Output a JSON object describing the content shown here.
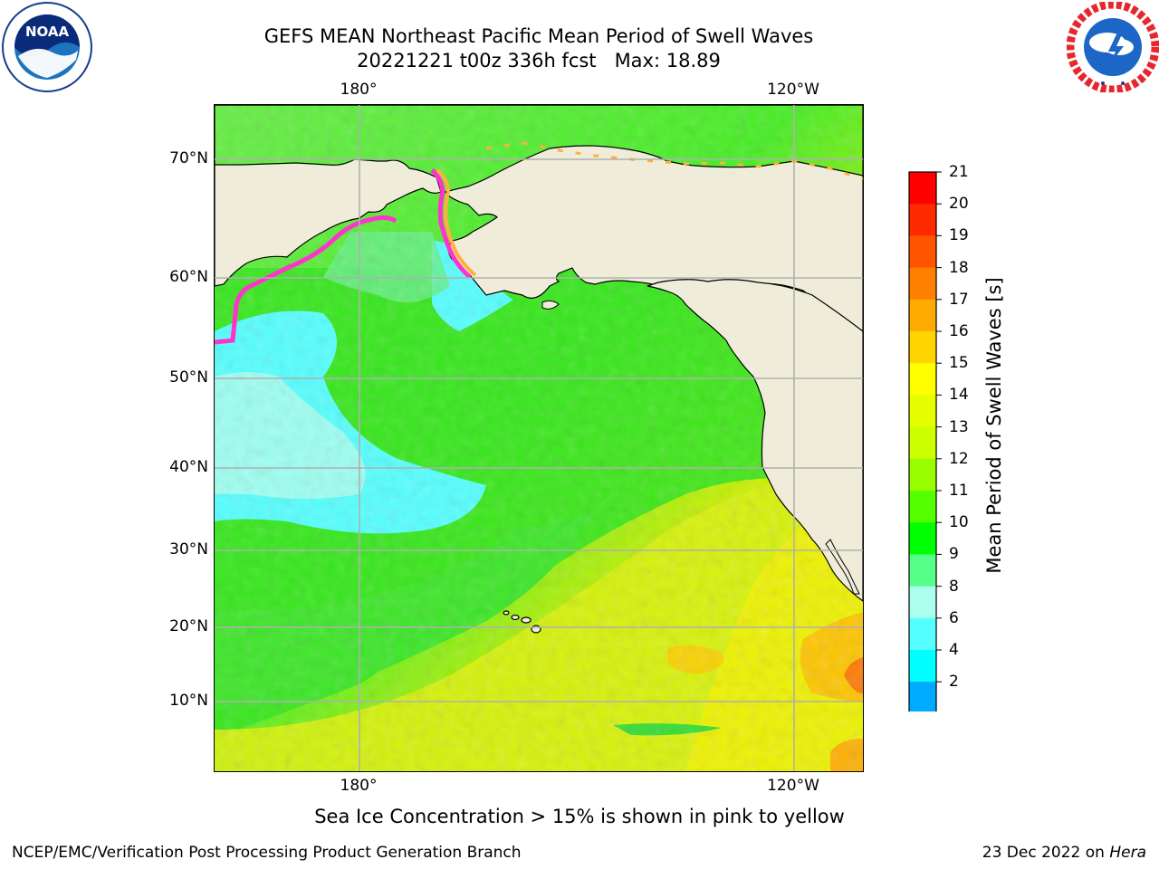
{
  "header": {
    "title_line1": "GEFS MEAN Northeast Pacific Mean Period of Swell Waves",
    "title_line2": "20221221 t00z 336h fcst   Max: 18.89"
  },
  "logos": {
    "left": {
      "icon": "noaa-logo",
      "text": "NOAA",
      "ring_text": "NATIONAL OCEANIC AND ATMOSPHERIC ADMINISTRATION · U.S. DEPARTMENT OF COMMERCE"
    },
    "right": {
      "icon": "nws-logo",
      "ring_text": "NATIONAL WEATHER SERVICE"
    }
  },
  "map": {
    "lon_labels": [
      "180°",
      "120°W"
    ],
    "lat_labels": [
      "70°N",
      "60°N",
      "50°N",
      "40°N",
      "30°N",
      "20°N",
      "10°N"
    ],
    "colors": {
      "land": "#efedda",
      "grid": "#b0b0b0",
      "sea_ice_pink": "#ff33cc",
      "sea_ice_orange": "#ffb040"
    }
  },
  "colorbar": {
    "title": "Mean Period of Swell Waves [s]",
    "labels": [
      "21",
      "20",
      "19",
      "18",
      "17",
      "16",
      "15",
      "14",
      "13",
      "12",
      "11",
      "10",
      "9",
      "8",
      "6",
      "4",
      "2"
    ],
    "colors_top_to_bottom": [
      "#ff0000",
      "#ff2a00",
      "#ff5500",
      "#ff8000",
      "#ffaa00",
      "#ffd400",
      "#ffff00",
      "#e6ff00",
      "#ccff00",
      "#99ff00",
      "#55ff00",
      "#00ff00",
      "#55ff88",
      "#aaffee",
      "#55ffff",
      "#00ffff",
      "#00aaff",
      "#0055ff"
    ],
    "extend_color": "#0000ff"
  },
  "footnote": "Sea Ice Concentration > 15% is shown in pink to yellow",
  "footer": {
    "left": "NCEP/EMC/Verification Post Processing Product Generation Branch",
    "right_prefix": "23 Dec 2022 on ",
    "right_italic": "Hera"
  }
}
